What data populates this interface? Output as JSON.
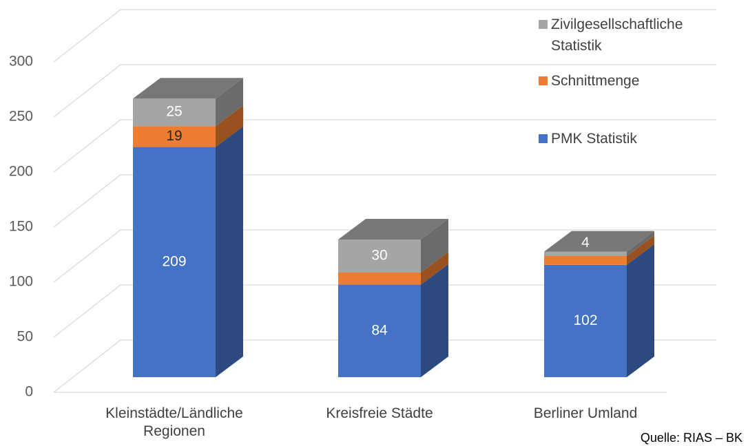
{
  "chart_data": {
    "type": "bar3d_stacked",
    "categories": [
      "Kleinstädte/Ländliche Regionen",
      "Kreisfreie Städte",
      "Berliner Umland"
    ],
    "series": [
      {
        "name": "PMK Statistik",
        "color": "#4472c4",
        "values": [
          209,
          84,
          102
        ]
      },
      {
        "name": "Schnittmenge",
        "color": "#ed7d31",
        "values": [
          19,
          11,
          8
        ]
      },
      {
        "name": "Zivilgesellschaftliche Statistik",
        "color": "#a5a5a5",
        "values": [
          25,
          30,
          4
        ]
      }
    ],
    "ylim": [
      0,
      300
    ],
    "yticks": [
      0,
      50,
      100,
      150,
      200,
      250,
      300
    ],
    "grid": true,
    "legend": "right",
    "source": "Quelle: RIAS – BK"
  }
}
